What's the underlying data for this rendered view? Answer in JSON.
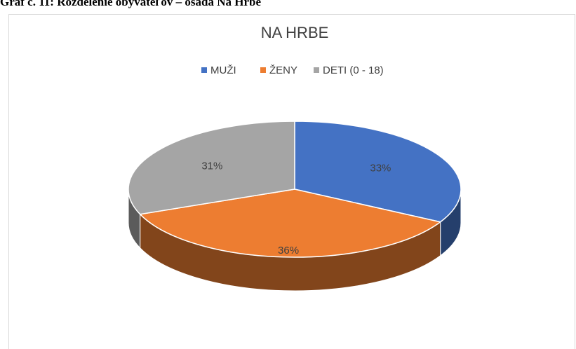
{
  "caption": "Graf č. 11: Rozdelenie obyvateľov – osada Na Hrbe",
  "chart_data": {
    "type": "pie3d",
    "title": "NA HRBE",
    "categories": [
      "MUŽI",
      "ŽENY",
      "DETI (0 - 18)"
    ],
    "values": [
      33,
      36,
      31
    ],
    "value_labels": [
      "33%",
      "36%",
      "31%"
    ],
    "colors": [
      "#4472c4",
      "#ed7d31",
      "#a5a5a5"
    ],
    "legend": "top"
  }
}
